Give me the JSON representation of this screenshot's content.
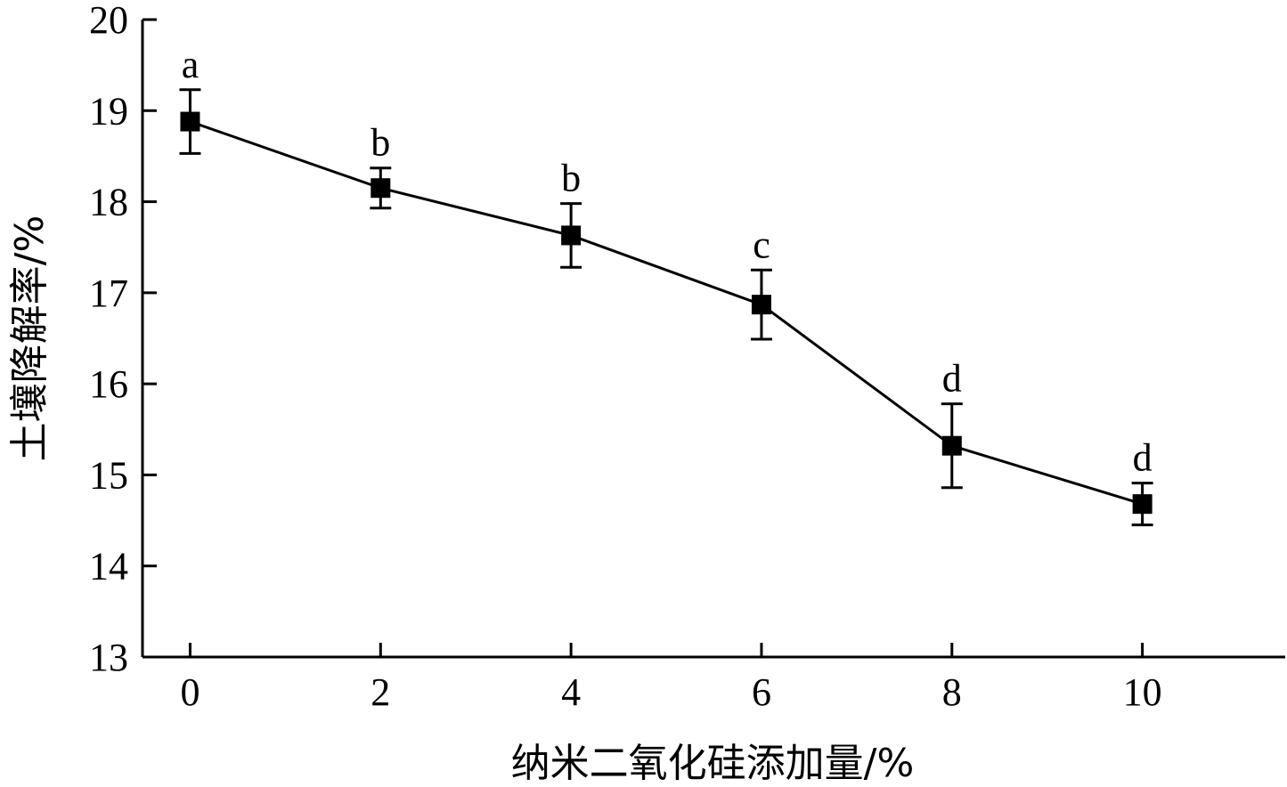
{
  "chart_data": {
    "type": "line",
    "xlabel": "纳米二氧化硅添加量/%",
    "ylabel": "土壤降解率/%",
    "xlim": [
      -0.5,
      11.5
    ],
    "ylim": [
      13,
      20
    ],
    "x_ticks": [
      0,
      2,
      4,
      6,
      8,
      10
    ],
    "x_tick_labels": [
      "0",
      "2",
      "4",
      "6",
      "8",
      "10"
    ],
    "y_ticks": [
      13,
      14,
      15,
      16,
      17,
      18,
      19,
      20
    ],
    "y_tick_labels": [
      "13",
      "14",
      "15",
      "16",
      "17",
      "18",
      "19",
      "20"
    ],
    "series": [
      {
        "x": [
          0,
          2,
          4,
          6,
          8,
          10
        ],
        "y": [
          18.88,
          18.15,
          17.63,
          16.87,
          15.32,
          14.68
        ],
        "err": [
          0.35,
          0.22,
          0.35,
          0.38,
          0.46,
          0.23
        ],
        "labels": [
          "a",
          "b",
          "b",
          "c",
          "d",
          "d"
        ],
        "color": "#000000",
        "marker": "square"
      }
    ],
    "grid": false,
    "legend": "none"
  }
}
